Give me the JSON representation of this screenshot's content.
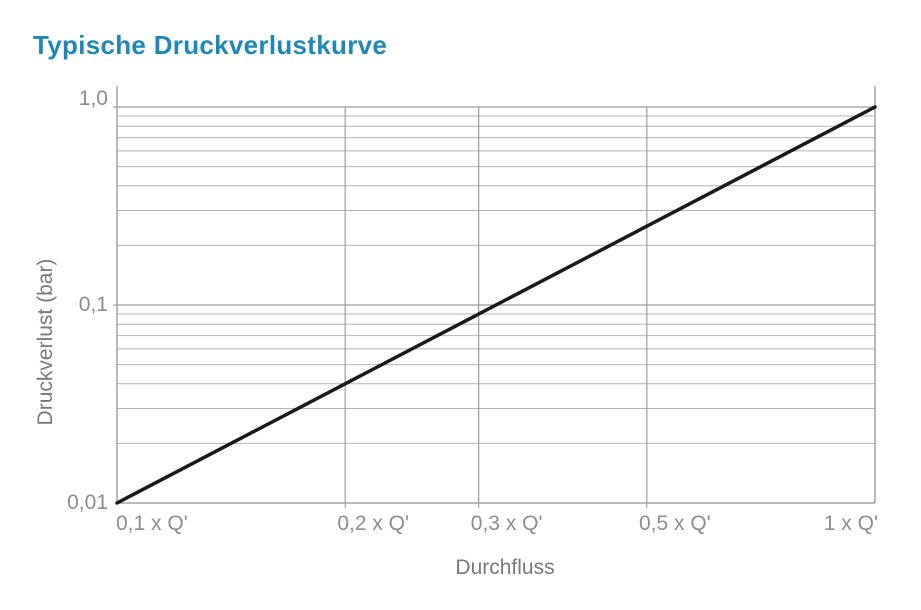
{
  "chart_data": {
    "type": "line",
    "title": "Typische Druckverlustkurve",
    "xlabel": "Durchfluss",
    "ylabel": "Druckverlust (bar)",
    "x_scale": "log",
    "y_scale": "log",
    "xlim": [
      0.1,
      1.0
    ],
    "ylim": [
      0.01,
      1.0
    ],
    "grid": true,
    "legend": false,
    "x_ticks": [
      {
        "value": 0.1,
        "label": "0,1 x Q'"
      },
      {
        "value": 0.2,
        "label": "0,2 x Q'"
      },
      {
        "value": 0.3,
        "label": "0,3 x Q'"
      },
      {
        "value": 0.5,
        "label": "0,5 x Q'"
      },
      {
        "value": 1.0,
        "label": "1 x Q'"
      }
    ],
    "y_ticks": [
      {
        "value": 1.0,
        "label": "1,0"
      },
      {
        "value": 0.1,
        "label": "0,1"
      },
      {
        "value": 0.01,
        "label": "0,01"
      }
    ],
    "x_gridlines": [
      0.2,
      0.3,
      0.5
    ],
    "y_gridlines_major": [
      1.0,
      0.1,
      0.01
    ],
    "y_gridlines_minor": [
      0.9,
      0.8,
      0.7,
      0.6,
      0.5,
      0.4,
      0.3,
      0.2,
      0.09,
      0.08,
      0.07,
      0.06,
      0.05,
      0.04,
      0.03,
      0.02
    ],
    "series": [
      {
        "name": "Druckverlustkurve",
        "points": [
          {
            "x": 0.1,
            "y": 0.01
          },
          {
            "x": 0.2,
            "y": 0.04
          },
          {
            "x": 0.3,
            "y": 0.09
          },
          {
            "x": 0.5,
            "y": 0.25
          },
          {
            "x": 1.0,
            "y": 1.0
          }
        ],
        "color": "#1a1a1a"
      }
    ],
    "colors": {
      "title": "#1e89b8",
      "tick_label": "#8d8d8d",
      "axis_title": "#76797d",
      "grid_minor": "#b4b4b4",
      "grid_major": "#9c9c9c",
      "axis_line": "#a3a3a3"
    }
  }
}
